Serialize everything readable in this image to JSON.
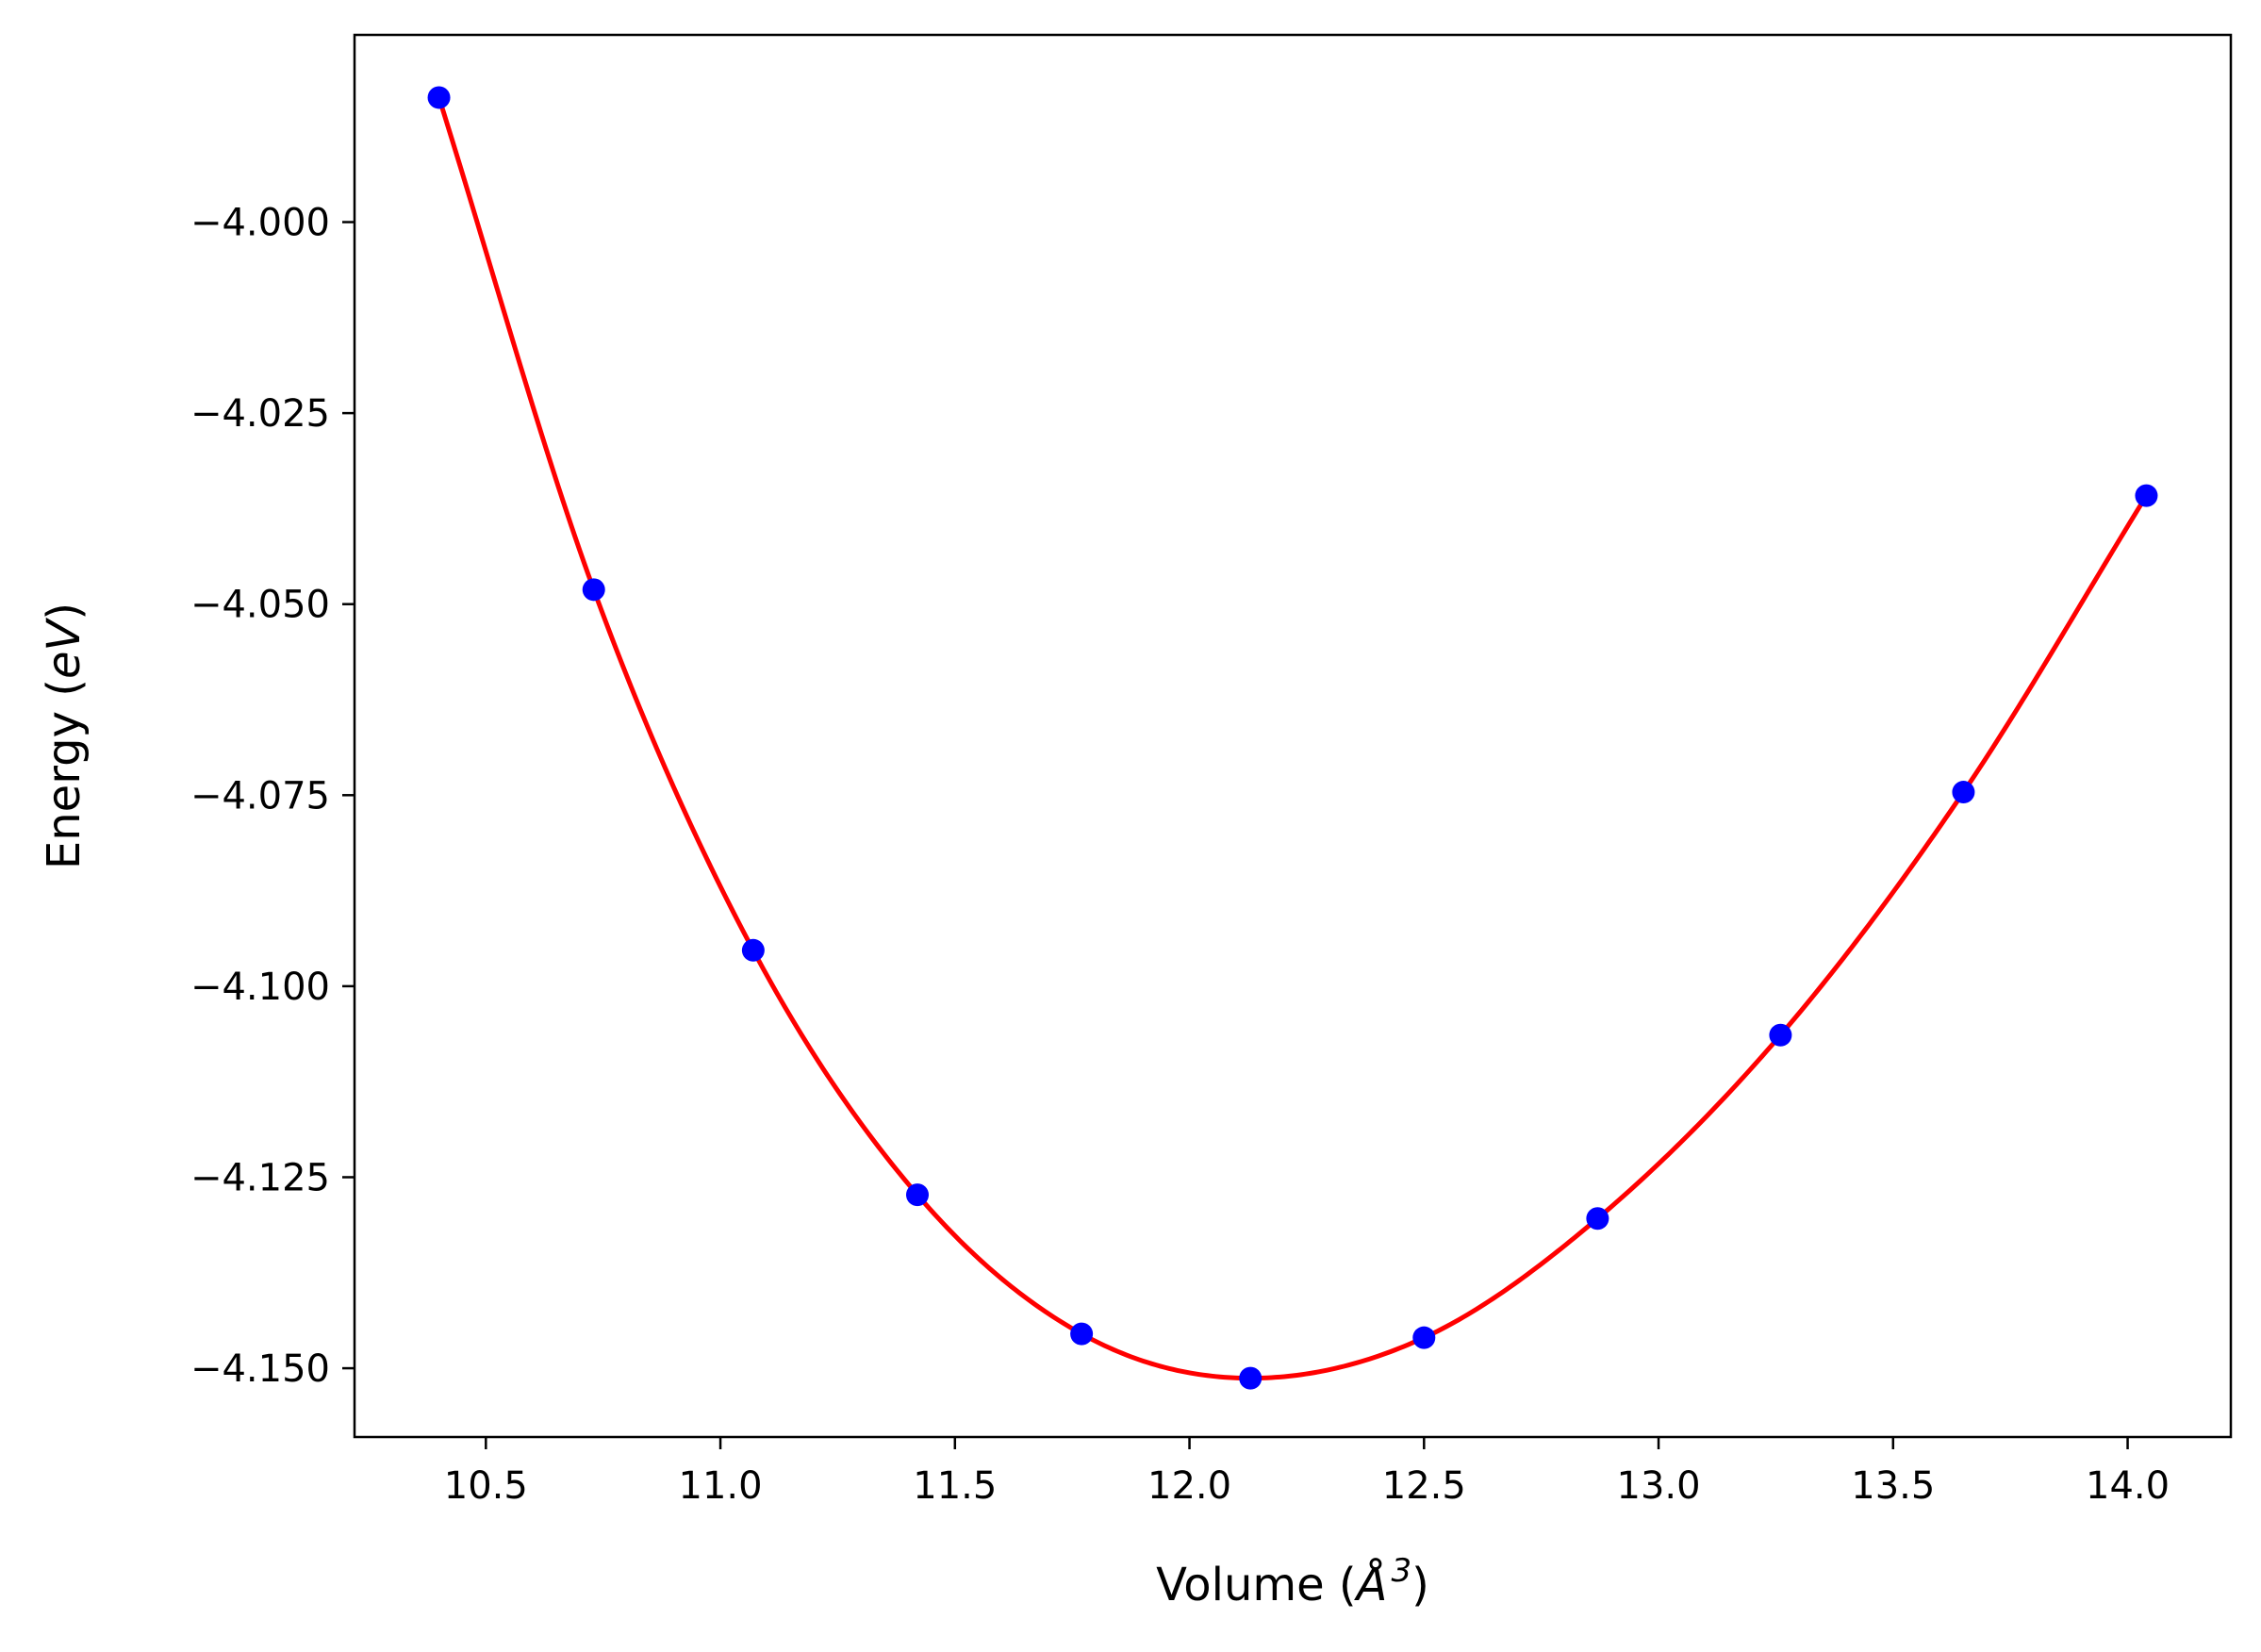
{
  "chart_data": {
    "type": "scatter",
    "title": "",
    "xlabel": "Volume (Å³)",
    "ylabel": "Energy (eV)",
    "xlabel_parts": {
      "before": "Volume (",
      "symbol": "Å",
      "superscript": "3",
      "after": ")"
    },
    "ylabel_parts": {
      "before": "Energy (",
      "italic": "eV",
      "after": ")"
    },
    "xlim": [
      10.22,
      14.22
    ],
    "ylim": [
      -4.159,
      -3.9755
    ],
    "xticks": [
      {
        "value": 10.5,
        "label": "10.5"
      },
      {
        "value": 11.0,
        "label": "11.0"
      },
      {
        "value": 11.5,
        "label": "11.5"
      },
      {
        "value": 12.0,
        "label": "12.0"
      },
      {
        "value": 12.5,
        "label": "12.5"
      },
      {
        "value": 13.0,
        "label": "13.0"
      },
      {
        "value": 13.5,
        "label": "13.5"
      },
      {
        "value": 14.0,
        "label": "14.0"
      }
    ],
    "yticks": [
      {
        "value": -4.0,
        "label": "−4.000"
      },
      {
        "value": -4.025,
        "label": "−4.025"
      },
      {
        "value": -4.05,
        "label": "−4.050"
      },
      {
        "value": -4.075,
        "label": "−4.075"
      },
      {
        "value": -4.1,
        "label": "−4.100"
      },
      {
        "value": -4.125,
        "label": "−4.125"
      },
      {
        "value": -4.15,
        "label": "−4.150"
      }
    ],
    "grid": false,
    "legend": "none",
    "series": [
      {
        "kind": "points",
        "color": "#0000ff",
        "x": [
          10.4,
          10.73,
          11.07,
          11.42,
          11.77,
          12.13,
          12.5,
          12.87,
          13.26,
          13.65,
          14.04
        ],
        "y": [
          -3.9837,
          -4.0481,
          -4.0953,
          -4.1273,
          -4.1455,
          -4.1513,
          -4.146,
          -4.1304,
          -4.1064,
          -4.0746,
          -4.0358
        ]
      },
      {
        "kind": "fit-line",
        "color": "#ff0000",
        "x": [
          10.4,
          10.73,
          11.07,
          11.42,
          11.77,
          12.13,
          12.5,
          12.87,
          13.26,
          13.65,
          14.04
        ],
        "y": [
          -3.9837,
          -4.0481,
          -4.0953,
          -4.1273,
          -4.1455,
          -4.1513,
          -4.146,
          -4.1304,
          -4.1064,
          -4.0746,
          -4.0358
        ]
      }
    ]
  }
}
